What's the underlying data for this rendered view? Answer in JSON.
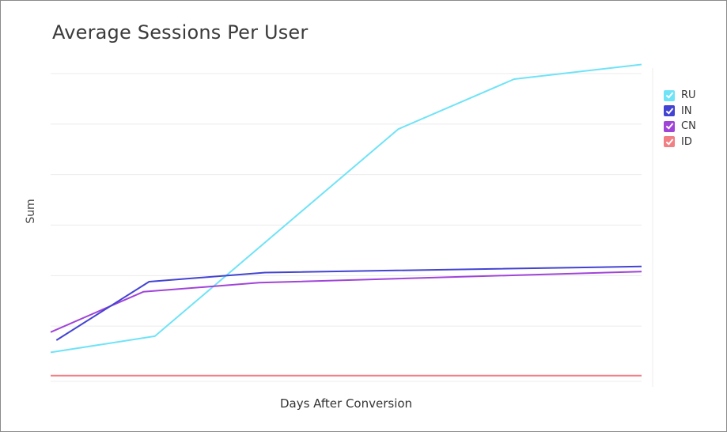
{
  "chart_data": {
    "type": "line",
    "title": "Average Sessions Per User",
    "xlabel": "Days After Conversion",
    "ylabel": "Sum",
    "grid": true,
    "legend_position": "right",
    "ylim": [
      0,
      6
    ],
    "series": [
      {
        "name": "RU",
        "color": "#6fe3f7",
        "x": [
          0,
          0.9,
          3,
          4,
          5.1
        ],
        "values": [
          0.48,
          0.8,
          4.9,
          5.89,
          6.18
        ]
      },
      {
        "name": "IN",
        "color": "#4343d3",
        "x": [
          0.05,
          0.85,
          1.85,
          5.1
        ],
        "values": [
          0.72,
          1.88,
          2.06,
          2.18
        ]
      },
      {
        "name": "CN",
        "color": "#a044d8",
        "x": [
          0,
          0.8,
          1.8,
          5.1
        ],
        "values": [
          0.88,
          1.68,
          1.86,
          2.08
        ]
      },
      {
        "name": "ID",
        "color": "#f17f84",
        "x": [
          0,
          5.1
        ],
        "values": [
          0.02,
          0.02
        ]
      }
    ]
  }
}
